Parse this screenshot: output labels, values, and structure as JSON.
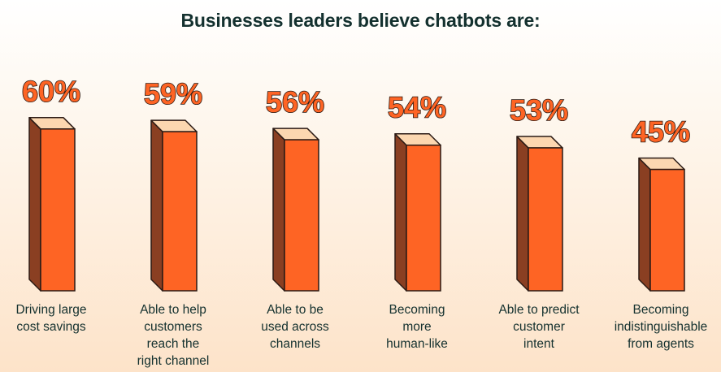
{
  "chart_data": {
    "type": "bar",
    "title": "Businesses leaders believe chatbots are:",
    "categories": [
      "Driving large\ncost savings",
      "Able to help\ncustomers\nreach the\nright channel",
      "Able to be\nused across\nchannels",
      "Becoming\nmore\nhuman-like",
      "Able to predict\ncustomer\nintent",
      "Becoming\nindistinguishable\nfrom agents"
    ],
    "values": [
      60,
      59,
      56,
      54,
      53,
      45
    ],
    "value_labels": [
      "60%",
      "59%",
      "56%",
      "54%",
      "53%",
      "45%"
    ],
    "unit": "%",
    "xlabel": "",
    "ylabel": "",
    "grid": false,
    "legend": "none"
  },
  "colors": {
    "bar_front": "#fe6424",
    "bar_side": "#8a3f22",
    "bar_top": "#fcd7b0",
    "outline": "#2a1a14",
    "value_label_fill": "#fe6424",
    "text": "#14312f"
  }
}
